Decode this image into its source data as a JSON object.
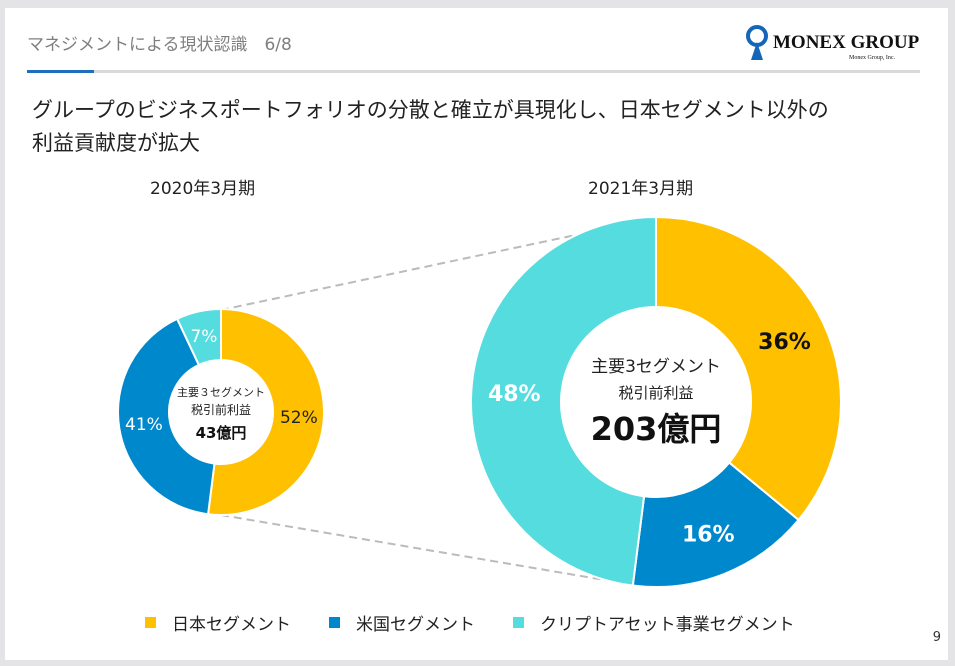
{
  "header": {
    "section_title": "マネジメントによる現状認識　6/8",
    "logo_text": "MONEX GROUP",
    "logo_sub": "Monex Group, Inc."
  },
  "headline": [
    "グループのビジネスポートフォリオの分散と確立が具現化し、日本セグメント以外の",
    "利益貢献度が拡大"
  ],
  "page_number": "9",
  "colors": {
    "japan": "#FFC000",
    "us": "#0088CC",
    "crypto": "#55DCDF",
    "accent": "#1F6FBF"
  },
  "chart_data": [
    {
      "type": "pie",
      "donut": true,
      "title": "2020年3月期",
      "center_label": [
        "主要３セグメント",
        "税引前利益"
      ],
      "center_value": "43億円",
      "categories": [
        "日本セグメント",
        "米国セグメント",
        "クリプトアセット事業セグメント"
      ],
      "values": [
        52,
        41,
        7
      ],
      "labels": [
        "52%",
        "41%",
        "7%"
      ]
    },
    {
      "type": "pie",
      "donut": true,
      "title": "2021年3月期",
      "center_label": [
        "主要3セグメント",
        "税引前利益"
      ],
      "center_value": "203億円",
      "categories": [
        "日本セグメント",
        "米国セグメント",
        "クリプトアセット事業セグメント"
      ],
      "values": [
        36,
        16,
        48
      ],
      "labels": [
        "36%",
        "16%",
        "48%"
      ]
    }
  ],
  "legend": [
    "日本セグメント",
    "米国セグメント",
    "クリプトアセット事業セグメント"
  ]
}
